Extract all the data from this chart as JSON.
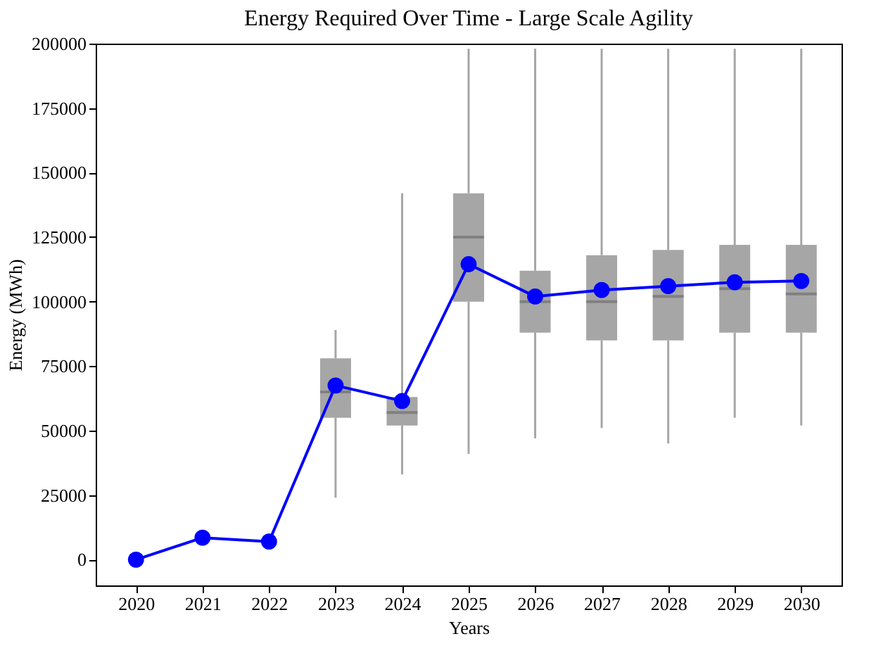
{
  "chart_data": {
    "type": "line",
    "title": "Energy Required Over Time - Large Scale Agility",
    "xlabel": "Years",
    "ylabel": "Energy (MWh)",
    "categories": [
      "2020",
      "2021",
      "2022",
      "2023",
      "2024",
      "2025",
      "2026",
      "2027",
      "2028",
      "2029",
      "2030"
    ],
    "ylim": [
      -10000,
      200000
    ],
    "yticks": [
      0,
      25000,
      50000,
      75000,
      100000,
      125000,
      150000,
      175000,
      200000
    ],
    "grid": false,
    "series": [
      {
        "type": "box",
        "color": "#a6a6a6",
        "boxes": [
          null,
          null,
          null,
          {
            "low": 24000,
            "q1": 55000,
            "median": 65000,
            "q3": 78000,
            "high": 89000
          },
          {
            "low": 33000,
            "q1": 52000,
            "median": 57000,
            "q3": 63000,
            "high": 142000
          },
          {
            "low": 41000,
            "q1": 100000,
            "median": 125000,
            "q3": 142000,
            "high": 198000
          },
          {
            "low": 47000,
            "q1": 88000,
            "median": 100000,
            "q3": 112000,
            "high": 198000
          },
          {
            "low": 51000,
            "q1": 85000,
            "median": 100000,
            "q3": 118000,
            "high": 198000
          },
          {
            "low": 45000,
            "q1": 85000,
            "median": 102000,
            "q3": 120000,
            "high": 198000
          },
          {
            "low": 55000,
            "q1": 88000,
            "median": 105000,
            "q3": 122000,
            "high": 198000
          },
          {
            "low": 52000,
            "q1": 88000,
            "median": 103000,
            "q3": 122000,
            "high": 198000
          }
        ]
      },
      {
        "color": "#0000ff",
        "marker": "circle",
        "line_style": "solid",
        "values": [
          0,
          8500,
          7000,
          67500,
          61500,
          114500,
          102000,
          104500,
          106000,
          107500,
          108000
        ]
      }
    ]
  }
}
